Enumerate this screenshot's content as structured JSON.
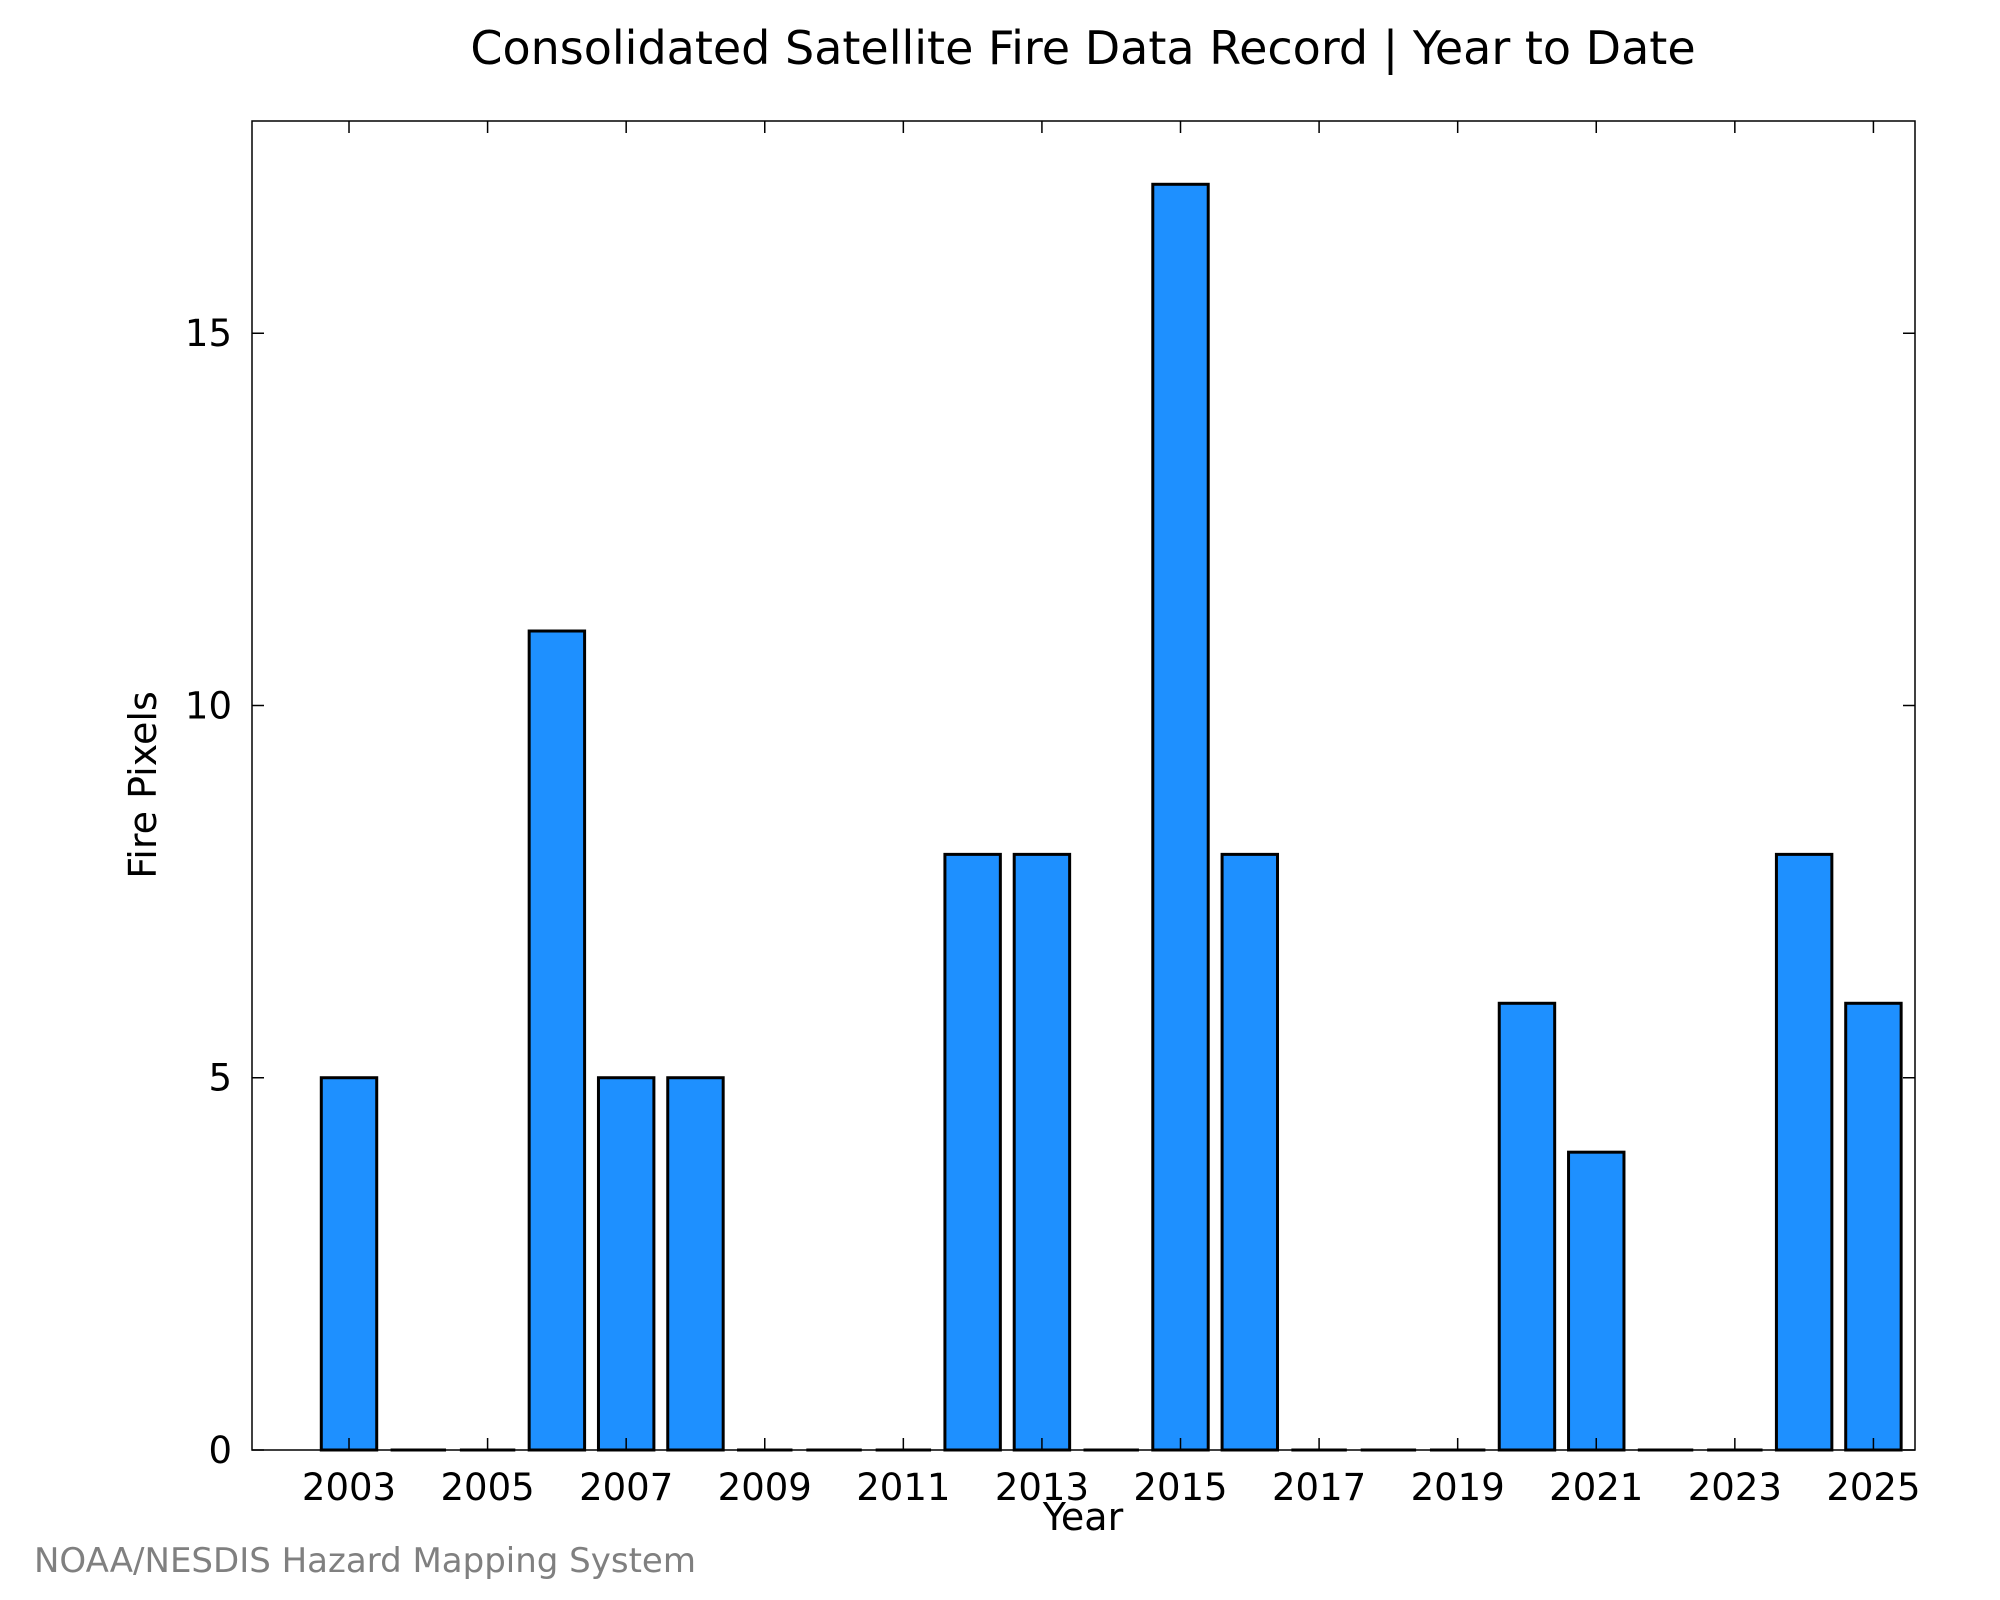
{
  "chart_data": {
    "type": "bar",
    "title": "Consolidated Satellite Fire Data Record | Year to Date",
    "xlabel": "Year",
    "ylabel": "Fire Pixels",
    "categories": [
      2003,
      2004,
      2005,
      2006,
      2007,
      2008,
      2009,
      2010,
      2011,
      2012,
      2013,
      2014,
      2015,
      2016,
      2017,
      2018,
      2019,
      2020,
      2021,
      2022,
      2023,
      2024,
      2025
    ],
    "values": [
      5,
      0,
      0,
      11,
      5,
      5,
      0,
      0,
      0,
      8,
      8,
      0,
      17,
      8,
      0,
      0,
      0,
      6,
      4,
      0,
      0,
      8,
      6
    ],
    "x_ticks": [
      "2003",
      "2005",
      "2007",
      "2009",
      "2011",
      "2013",
      "2015",
      "2017",
      "2019",
      "2021",
      "2023",
      "2025"
    ],
    "y_ticks": [
      "0",
      "5",
      "10",
      "15"
    ],
    "ylim": [
      0,
      17.85
    ],
    "xlim": [
      2001.6,
      2025.6
    ],
    "grid": false,
    "bar_color": "#1E90FF",
    "edge_color": "#000000"
  },
  "credit": "NOAA/NESDIS Hazard Mapping System"
}
